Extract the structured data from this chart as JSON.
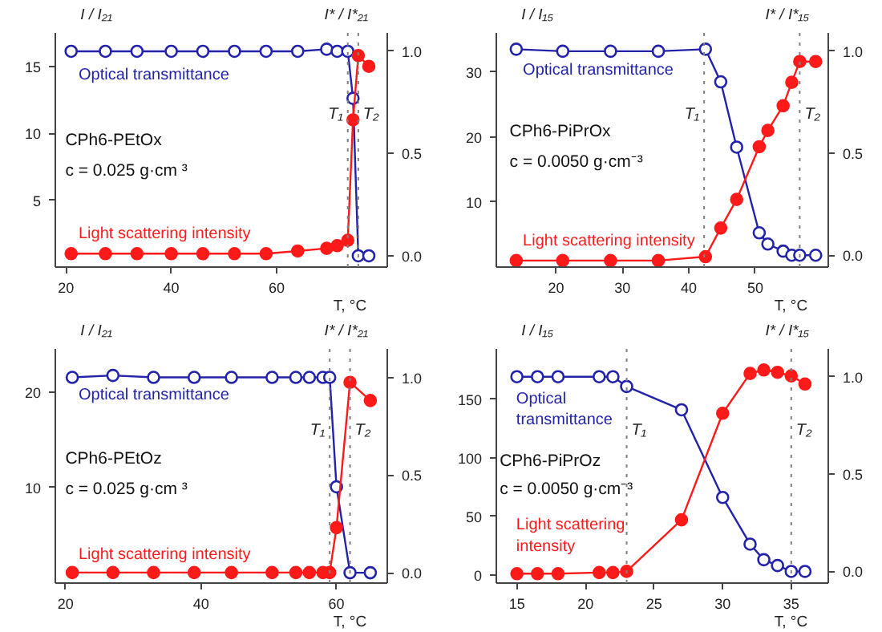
{
  "chart_data": [
    {
      "type": "line",
      "xlabel": "T, °C",
      "ylabel": "I / I₂₁",
      "y2label": "I* / I*₂₁",
      "xlim": [
        18,
        81
      ],
      "xticks": [
        20,
        40,
        60
      ],
      "ylim": [
        0,
        17.5
      ],
      "yticks": [
        5,
        10,
        15
      ],
      "y2lim": [
        -0.055,
        1.09
      ],
      "y2ticks": [
        {
          "value": 0,
          "label": "0.0"
        },
        {
          "value": 0.5,
          "label": "0.5"
        },
        {
          "value": 1,
          "label": "1.0"
        }
      ],
      "grid": false,
      "legend": false,
      "marker": "circle",
      "line_style": "solid",
      "annotations": [
        "CPh6-PEtOx",
        "c = 0.025 g·cm ³"
      ],
      "ref_lines": [
        {
          "axis": "x",
          "value": 73.5,
          "label": "T₁",
          "color": "#808080",
          "line_style": "dotted"
        },
        {
          "axis": "x",
          "value": 75.5,
          "label": "T₂",
          "color": "#808080",
          "line_style": "dotted"
        }
      ],
      "series": [
        {
          "name": "Optical transmittance",
          "color": "#2222aa",
          "axis": "y2",
          "x": [
            21,
            27.5,
            33.5,
            40,
            46,
            52,
            58,
            64,
            69.5,
            71.5,
            73.5,
            74.5,
            75.5,
            77.5
          ],
          "values": [
            1.0,
            1.0,
            1.0,
            1.0,
            1.0,
            1.0,
            1.0,
            1.0,
            1.01,
            1.0,
            1.0,
            0.77,
            0.0,
            0.0
          ]
        },
        {
          "name": "Light scattering intensity",
          "color": "#ff1a1a",
          "x": [
            21,
            27.5,
            33.5,
            40,
            46,
            52,
            58,
            64,
            69.5,
            71.5,
            73.5,
            74.5,
            75.5,
            77.5
          ],
          "values": [
            1.0,
            1.0,
            1.0,
            1.0,
            1.0,
            1.0,
            1.0,
            1.2,
            1.4,
            1.6,
            2.0,
            11.0,
            15.8,
            15.0
          ]
        }
      ]
    },
    {
      "type": "line",
      "xlabel": "T, °C",
      "ylabel": "I / I₁₅",
      "y2label": "I* / I*₁₅",
      "xlim": [
        11,
        61
      ],
      "xticks": [
        20,
        30,
        40,
        50
      ],
      "ylim": [
        0,
        36
      ],
      "yticks": [
        10,
        20,
        30
      ],
      "y2lim": [
        -0.058,
        1.09
      ],
      "y2ticks": [
        {
          "value": 0,
          "label": "0.0"
        },
        {
          "value": 0.5,
          "label": "0.5"
        },
        {
          "value": 1,
          "label": "1.0"
        }
      ],
      "grid": false,
      "legend": false,
      "marker": "circle",
      "line_style": "solid",
      "annotations": [
        "CPh6-PiPrOx",
        "c = 0.0050 g·cm⁻³"
      ],
      "ref_lines": [
        {
          "axis": "x",
          "value": 42.3,
          "label": "T₁",
          "color": "#808080",
          "line_style": "dotted"
        },
        {
          "axis": "x",
          "value": 56.7,
          "label": "T₂",
          "color": "#808080",
          "line_style": "dotted"
        }
      ],
      "series": [
        {
          "name": "Optical transmittance",
          "color": "#2222aa",
          "axis": "y2",
          "x": [
            14,
            21,
            28.2,
            35.4,
            42.5,
            44.8,
            47.2,
            50.6,
            51.9,
            54.2,
            55.5,
            56.7,
            59.1
          ],
          "values": [
            1.01,
            1.0,
            1.0,
            1.0,
            1.01,
            0.85,
            0.53,
            0.11,
            0.055,
            0.02,
            0.0,
            0.0,
            0.0
          ]
        },
        {
          "name": "Light scattering intensity",
          "color": "#ff1a1a",
          "x": [
            14,
            21,
            28.2,
            35.4,
            42.5,
            44.8,
            47.2,
            50.6,
            51.9,
            54.2,
            55.5,
            56.7,
            59.1
          ],
          "values": [
            1.0,
            1.0,
            1.0,
            1.0,
            1.6,
            6.0,
            10.4,
            18.5,
            21.0,
            24.8,
            28.4,
            31.6,
            31.6
          ]
        }
      ]
    },
    {
      "type": "line",
      "xlabel": "T, °C",
      "ylabel": "I / I₂₁",
      "y2label": "I* / I*₂₁",
      "xlim": [
        18.5,
        67.5
      ],
      "xticks": [
        20,
        40,
        60
      ],
      "ylim": [
        0,
        24.5
      ],
      "yticks": [
        10,
        20
      ],
      "y2lim": [
        -0.053,
        1.146
      ],
      "y2ticks": [
        {
          "value": 0,
          "label": "0.0"
        },
        {
          "value": 0.5,
          "label": "0.5"
        },
        {
          "value": 1,
          "label": "1.0"
        }
      ],
      "grid": false,
      "legend": false,
      "marker": "circle",
      "line_style": "solid",
      "annotations": [
        "CPh6-PEtOz",
        "c = 0.025 g·cm ³"
      ],
      "ref_lines": [
        {
          "axis": "x",
          "value": 59,
          "label": "T₁",
          "color": "#808080",
          "line_style": "dotted"
        },
        {
          "axis": "x",
          "value": 62,
          "label": "T₂",
          "color": "#808080",
          "line_style": "dotted"
        }
      ],
      "series": [
        {
          "name": "Optical transmittance",
          "color": "#2222aa",
          "axis": "y2",
          "x": [
            21,
            27,
            33,
            39,
            44.5,
            50.5,
            54,
            56,
            58,
            59,
            60,
            62,
            65
          ],
          "values": [
            1.0,
            1.01,
            1.0,
            1.0,
            1.0,
            1.0,
            1.0,
            1.0,
            1.0,
            1.0,
            0.44,
            0.0,
            0.0
          ]
        },
        {
          "name": "Light scattering intensity",
          "color": "#ff1a1a",
          "x": [
            21,
            27,
            33,
            39,
            44.5,
            50.5,
            54,
            56,
            58,
            59,
            60,
            62,
            65
          ],
          "values": [
            1.1,
            1.1,
            1.1,
            1.1,
            1.1,
            1.1,
            1.1,
            1.1,
            1.1,
            1.1,
            5.8,
            21.0,
            19.1
          ]
        }
      ]
    },
    {
      "type": "line",
      "xlabel": "T, °C",
      "ylabel": "I / I₁₅",
      "y2label": "I* / I*₁₅",
      "xlim": [
        13.5,
        37.7
      ],
      "xticks": [
        15,
        20,
        25,
        30,
        35
      ],
      "ylim": [
        -7,
        193
      ],
      "yticks": [
        0,
        50,
        100,
        150
      ],
      "y2lim": [
        -0.06,
        1.143
      ],
      "y2ticks": [
        {
          "value": 0,
          "label": "0.0"
        },
        {
          "value": 0.5,
          "label": "0.5"
        },
        {
          "value": 1,
          "label": "1.0"
        }
      ],
      "grid": false,
      "legend": false,
      "marker": "circle",
      "line_style": "solid",
      "annotations": [
        "CPh6-PiPrOz",
        "c = 0.0050 g·cm⁻³"
      ],
      "ref_lines": [
        {
          "axis": "x",
          "value": 23,
          "label": "T₁",
          "color": "#808080",
          "line_style": "dotted"
        },
        {
          "axis": "x",
          "value": 35,
          "label": "T₂",
          "color": "#808080",
          "line_style": "dotted"
        }
      ],
      "series": [
        {
          "name": "Optical\ntransmittance",
          "color": "#2222aa",
          "axis": "y2",
          "x": [
            15,
            16.5,
            18,
            21,
            22,
            23,
            27,
            30,
            32,
            33,
            34,
            35,
            36
          ],
          "values": [
            1.0,
            1.0,
            1.0,
            1.0,
            1.0,
            0.95,
            0.83,
            0.38,
            0.14,
            0.06,
            0.03,
            0.0,
            0.0
          ]
        },
        {
          "name": "Light scattering\nintensity",
          "color": "#ff1a1a",
          "x": [
            15,
            16.5,
            18,
            21,
            22,
            23,
            27,
            30,
            32,
            33,
            34,
            35,
            36
          ],
          "values": [
            1,
            1,
            1,
            2,
            2,
            3,
            47,
            138,
            172,
            175,
            173,
            170,
            163
          ]
        }
      ]
    }
  ]
}
